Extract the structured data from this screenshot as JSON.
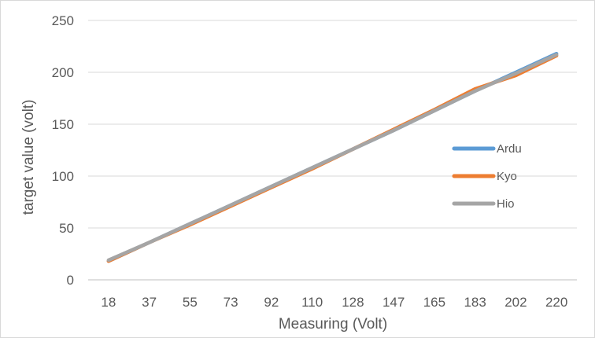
{
  "chart_data": {
    "type": "line",
    "title": "",
    "xlabel": "Measuring (Volt)",
    "ylabel": "target value (volt)",
    "categories": [
      "18",
      "37",
      "55",
      "73",
      "92",
      "110",
      "128",
      "147",
      "165",
      "183",
      "202",
      "220"
    ],
    "ylim": [
      0,
      250
    ],
    "yticks": [
      0,
      50,
      100,
      150,
      200,
      250
    ],
    "grid": "horizontal",
    "legend": "right",
    "series": [
      {
        "name": "Ardu",
        "color": "#5b9bd5",
        "values": [
          18,
          36,
          54,
          72,
          90,
          108,
          126,
          144,
          163,
          182,
          200,
          218
        ]
      },
      {
        "name": "Kyo",
        "color": "#ed7d31",
        "values": [
          18,
          36,
          53,
          71,
          89,
          107,
          126,
          145,
          164,
          184,
          197,
          216
        ]
      },
      {
        "name": "Hio",
        "color": "#a5a5a5",
        "values": [
          19,
          36,
          54,
          72,
          90,
          108,
          126,
          144,
          163,
          182,
          199,
          217
        ]
      }
    ]
  }
}
